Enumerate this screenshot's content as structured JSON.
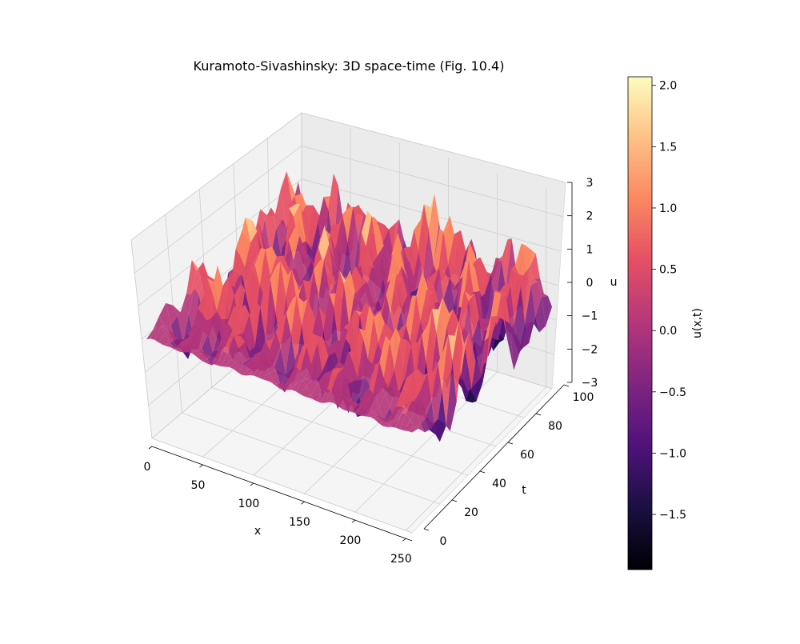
{
  "chart_data": {
    "type": "surface3d",
    "title": "Kuramoto-Sivashinsky: 3D space-time (Fig. 10.4)",
    "xlabel": "x",
    "ylabel": "t",
    "zlabel": "u",
    "xlim": [
      0,
      256
    ],
    "ylim": [
      0,
      100
    ],
    "zlim": [
      -3,
      3
    ],
    "x_ticks": [
      {
        "value": 0,
        "label": "0"
      },
      {
        "value": 50,
        "label": "50"
      },
      {
        "value": 100,
        "label": "100"
      },
      {
        "value": 150,
        "label": "150"
      },
      {
        "value": 200,
        "label": "200"
      },
      {
        "value": 250,
        "label": "250"
      }
    ],
    "y_ticks": [
      {
        "value": 0,
        "label": "0"
      },
      {
        "value": 20,
        "label": "20"
      },
      {
        "value": 40,
        "label": "40"
      },
      {
        "value": 60,
        "label": "60"
      },
      {
        "value": 80,
        "label": "80"
      },
      {
        "value": 100,
        "label": "100"
      }
    ],
    "z_ticks": [
      {
        "value": -3,
        "label": "−3"
      },
      {
        "value": -2,
        "label": "−2"
      },
      {
        "value": -1,
        "label": "−1"
      },
      {
        "value": 0,
        "label": "0"
      },
      {
        "value": 1,
        "label": "1"
      },
      {
        "value": 2,
        "label": "2"
      },
      {
        "value": 3,
        "label": "3"
      }
    ],
    "colormap": "magma",
    "colorbar": {
      "label": "u(x,t)",
      "range": [
        -1.95,
        2.07
      ],
      "ticks": [
        {
          "value": -1.5,
          "label": "−1.5"
        },
        {
          "value": -1.0,
          "label": "−1.0"
        },
        {
          "value": -0.5,
          "label": "−0.5"
        },
        {
          "value": 0.0,
          "label": "0.0"
        },
        {
          "value": 0.5,
          "label": "0.5"
        },
        {
          "value": 1.0,
          "label": "1.0"
        },
        {
          "value": 1.5,
          "label": "1.5"
        },
        {
          "value": 2.0,
          "label": "2.0"
        }
      ]
    },
    "grid": true
  }
}
